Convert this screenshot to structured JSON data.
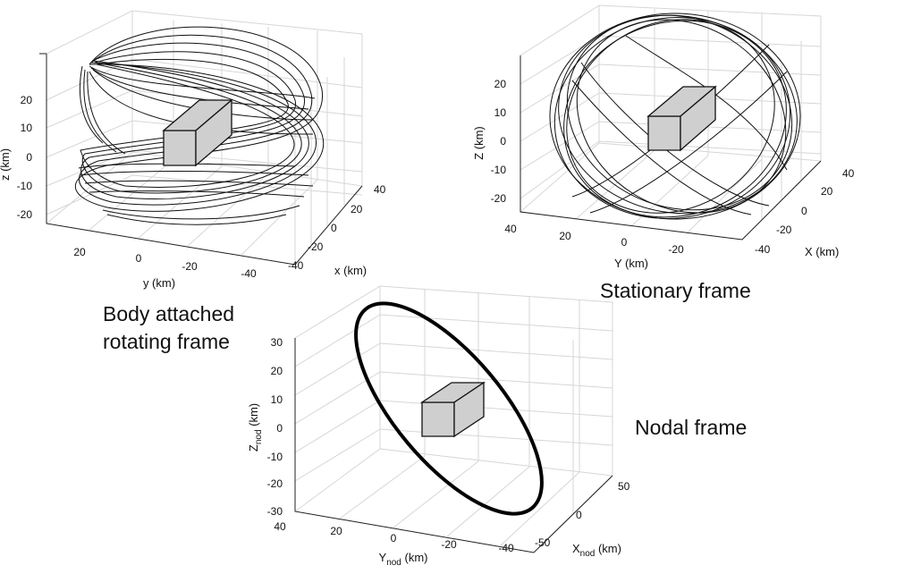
{
  "panels": [
    {
      "id": "body",
      "caption_lines": [
        "Body attached",
        "rotating frame"
      ],
      "z_label": "z (km)",
      "x_label": "x (km)",
      "y_label": "y (km)",
      "z_ticks": [
        "20",
        "10",
        "0",
        "-10",
        "-20"
      ],
      "x_ticks": [
        "40",
        "20",
        "0",
        "-20",
        "-40"
      ],
      "y_ticks": [
        "20",
        "0",
        "-20",
        "-40"
      ]
    },
    {
      "id": "stationary",
      "caption_lines": [
        "Stationary frame"
      ],
      "z_label": "Z (km)",
      "x_label": "X (km)",
      "y_label": "Y (km)",
      "z_ticks": [
        "20",
        "10",
        "0",
        "-10",
        "-20"
      ],
      "x_ticks": [
        "40",
        "20",
        "0",
        "-20",
        "-40"
      ],
      "y_ticks": [
        "40",
        "20",
        "0",
        "-20"
      ]
    },
    {
      "id": "nodal",
      "caption_lines": [
        "Nodal frame"
      ],
      "z_label": "Z",
      "z_sub": "nod",
      "z_unit": " (km)",
      "x_label": "X",
      "x_sub": "nod",
      "x_unit": " (km)",
      "y_label": "Y",
      "y_sub": "nod",
      "y_unit": " (km)",
      "z_ticks": [
        "30",
        "20",
        "10",
        "0",
        "-10",
        "-20",
        "-30"
      ],
      "x_ticks": [
        "50",
        "0",
        "-50"
      ],
      "y_ticks": [
        "40",
        "20",
        "0",
        "-20",
        "-40"
      ]
    }
  ],
  "colors": {
    "box": "#cfcfcf",
    "grid": "#d6d6d6",
    "line": "#111111"
  }
}
